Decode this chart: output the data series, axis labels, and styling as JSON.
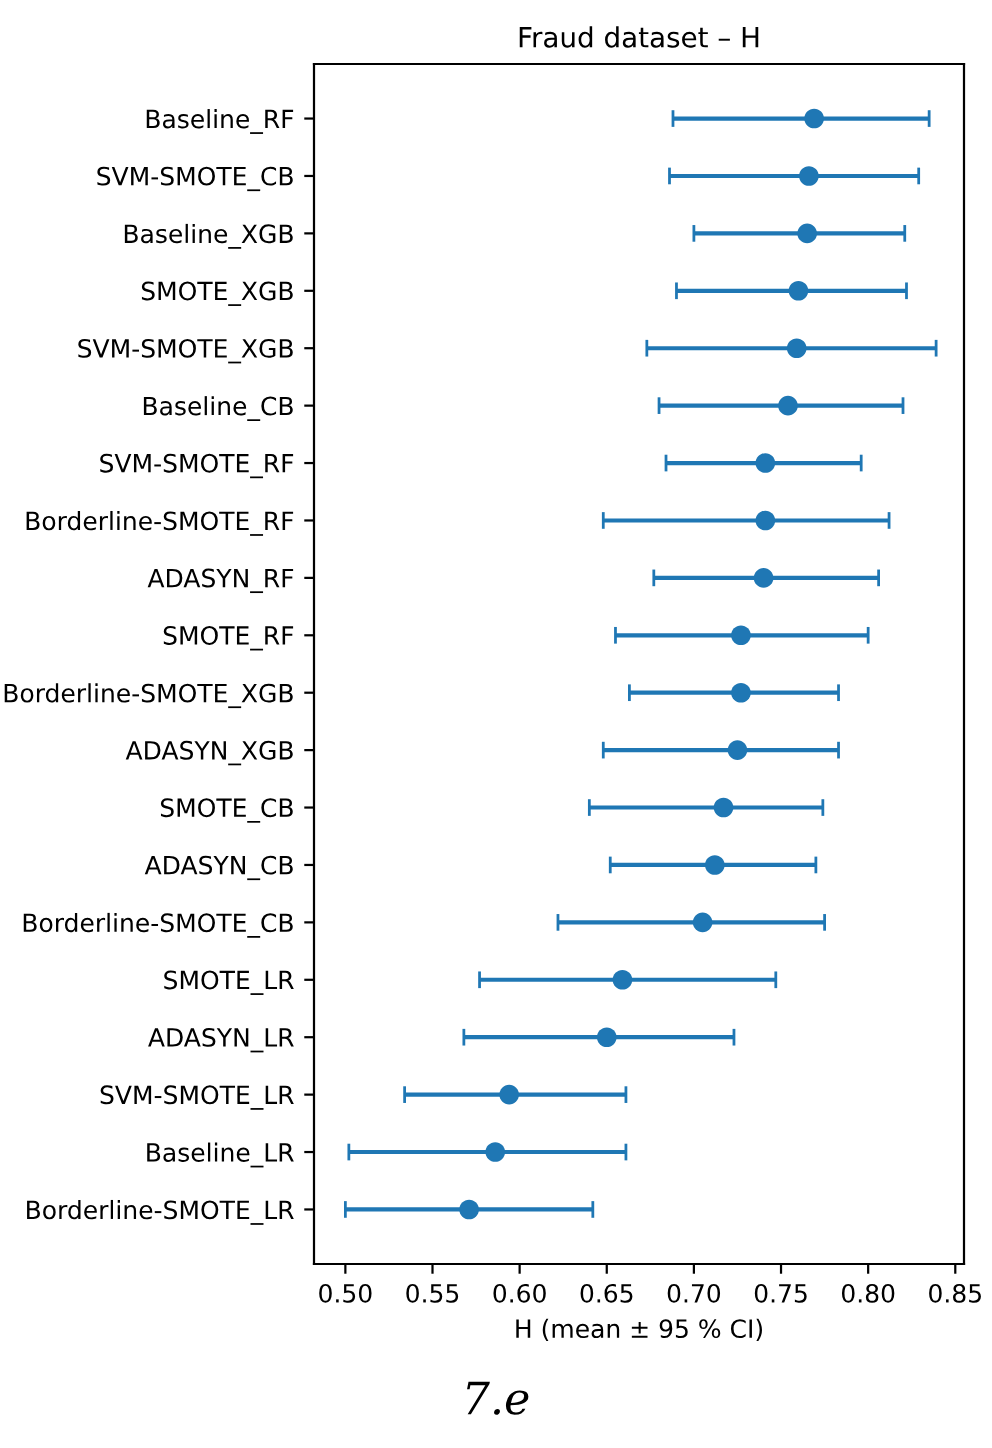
{
  "chart_data": {
    "type": "scatter",
    "orientation": "horizontal",
    "title": "Fraud dataset – H",
    "xlabel": "H (mean ± 95 % CI)",
    "categories": [
      "Baseline_RF",
      "SVM-SMOTE_CB",
      "Baseline_XGB",
      "SMOTE_XGB",
      "SVM-SMOTE_XGB",
      "Baseline_CB",
      "SVM-SMOTE_RF",
      "Borderline-SMOTE_RF",
      "ADASYN_RF",
      "SMOTE_RF",
      "Borderline-SMOTE_XGB",
      "ADASYN_XGB",
      "SMOTE_CB",
      "ADASYN_CB",
      "Borderline-SMOTE_CB",
      "SMOTE_LR",
      "ADASYN_LR",
      "SVM-SMOTE_LR",
      "Baseline_LR",
      "Borderline-SMOTE_LR"
    ],
    "series": [
      {
        "color": "#1f77b4",
        "values": [
          0.769,
          0.766,
          0.765,
          0.76,
          0.759,
          0.754,
          0.741,
          0.741,
          0.74,
          0.727,
          0.727,
          0.725,
          0.717,
          0.712,
          0.705,
          0.659,
          0.65,
          0.594,
          0.586,
          0.571
        ],
        "errors": [
          [
            0.688,
            0.835
          ],
          [
            0.686,
            0.829
          ],
          [
            0.7,
            0.821
          ],
          [
            0.69,
            0.822
          ],
          [
            0.673,
            0.839
          ],
          [
            0.68,
            0.82
          ],
          [
            0.684,
            0.796
          ],
          [
            0.648,
            0.812
          ],
          [
            0.677,
            0.806
          ],
          [
            0.655,
            0.8
          ],
          [
            0.663,
            0.783
          ],
          [
            0.648,
            0.783
          ],
          [
            0.64,
            0.774
          ],
          [
            0.652,
            0.77
          ],
          [
            0.622,
            0.775
          ],
          [
            0.577,
            0.747
          ],
          [
            0.568,
            0.723
          ],
          [
            0.534,
            0.661
          ],
          [
            0.502,
            0.661
          ],
          [
            0.5,
            0.642
          ]
        ]
      }
    ],
    "xlim": [
      0.482,
      0.855
    ],
    "xticks": [
      {
        "value": 0.5,
        "label": "0.50"
      },
      {
        "value": 0.55,
        "label": "0.55"
      },
      {
        "value": 0.6,
        "label": "0.60"
      },
      {
        "value": 0.65,
        "label": "0.65"
      },
      {
        "value": 0.7,
        "label": "0.70"
      },
      {
        "value": 0.75,
        "label": "0.75"
      },
      {
        "value": 0.8,
        "label": "0.80"
      },
      {
        "value": 0.85,
        "label": "0.85"
      }
    ],
    "marker": "circle",
    "grid": false,
    "legend": false,
    "annotations": [
      "7.e"
    ]
  }
}
